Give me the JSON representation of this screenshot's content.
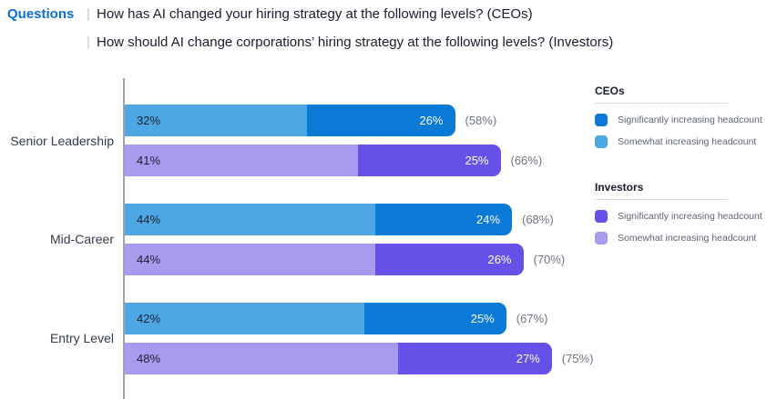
{
  "header": {
    "label": "Questions",
    "divider": "|",
    "questions": [
      "How has AI changed your hiring strategy at the following levels? (CEOs)",
      "How should AI change corporations’ hiring strategy at the following levels? (Investors)"
    ]
  },
  "colors": {
    "ceo_significant": "#0B79D6",
    "ceo_somewhat": "#4EA6E2",
    "investor_significant": "#6550E8",
    "investor_somewhat": "#A89BEF",
    "header_accent": "#0A70D6",
    "text_dark": "#191D2E",
    "text_muted": "#6E7480",
    "axis": "#9AA1B1"
  },
  "legend": {
    "groups": [
      {
        "title": "CEOs",
        "items": [
          {
            "label": "Significantly increasing headcount",
            "color": "#0B79D6"
          },
          {
            "label": "Somewhat increasing headcount",
            "color": "#4EA6E2"
          }
        ]
      },
      {
        "title": "Investors",
        "items": [
          {
            "label": "Significantly increasing headcount",
            "color": "#6550E8"
          },
          {
            "label": "Somewhat increasing headcount",
            "color": "#A89BEF"
          }
        ]
      }
    ]
  },
  "chart_data": {
    "type": "bar",
    "orientation": "horizontal",
    "stacked": true,
    "unit": "%",
    "xlim": [
      0,
      80
    ],
    "grid": false,
    "legend_position": "right",
    "categories": [
      "Senior Leadership",
      "Mid-Career",
      "Entry Level"
    ],
    "series": [
      {
        "name": "CEOs – Somewhat increasing headcount",
        "values": [
          32,
          44,
          42
        ]
      },
      {
        "name": "CEOs – Significantly increasing headcount",
        "values": [
          26,
          24,
          25
        ]
      },
      {
        "name": "Investors – Somewhat increasing headcount",
        "values": [
          41,
          44,
          48
        ]
      },
      {
        "name": "Investors – Significantly increasing headcount",
        "values": [
          25,
          26,
          27
        ]
      }
    ],
    "totals": {
      "CEOs": [
        58,
        68,
        67
      ],
      "Investors": [
        66,
        70,
        75
      ]
    },
    "rows": [
      {
        "category": "Senior Leadership",
        "bars": [
          {
            "audience": "CEOs",
            "segments": [
              {
                "label": "32%",
                "value": 32,
                "color_key": "ceo_somewhat"
              },
              {
                "label": "26%",
                "value": 26,
                "color_key": "ceo_significant"
              }
            ],
            "total_label": "(58%)"
          },
          {
            "audience": "Investors",
            "segments": [
              {
                "label": "41%",
                "value": 41,
                "color_key": "investor_somewhat"
              },
              {
                "label": "25%",
                "value": 25,
                "color_key": "investor_significant"
              }
            ],
            "total_label": "(66%)"
          }
        ]
      },
      {
        "category": "Mid-Career",
        "bars": [
          {
            "audience": "CEOs",
            "segments": [
              {
                "label": "44%",
                "value": 44,
                "color_key": "ceo_somewhat"
              },
              {
                "label": "24%",
                "value": 24,
                "color_key": "ceo_significant"
              }
            ],
            "total_label": "(68%)"
          },
          {
            "audience": "Investors",
            "segments": [
              {
                "label": "44%",
                "value": 44,
                "color_key": "investor_somewhat"
              },
              {
                "label": "26%",
                "value": 26,
                "color_key": "investor_significant"
              }
            ],
            "total_label": "(70%)"
          }
        ]
      },
      {
        "category": "Entry Level",
        "bars": [
          {
            "audience": "CEOs",
            "segments": [
              {
                "label": "42%",
                "value": 42,
                "color_key": "ceo_somewhat"
              },
              {
                "label": "25%",
                "value": 25,
                "color_key": "ceo_significant"
              }
            ],
            "total_label": "(67%)"
          },
          {
            "audience": "Investors",
            "segments": [
              {
                "label": "48%",
                "value": 48,
                "color_key": "investor_somewhat"
              },
              {
                "label": "27%",
                "value": 27,
                "color_key": "investor_significant"
              }
            ],
            "total_label": "(75%)"
          }
        ]
      }
    ]
  }
}
